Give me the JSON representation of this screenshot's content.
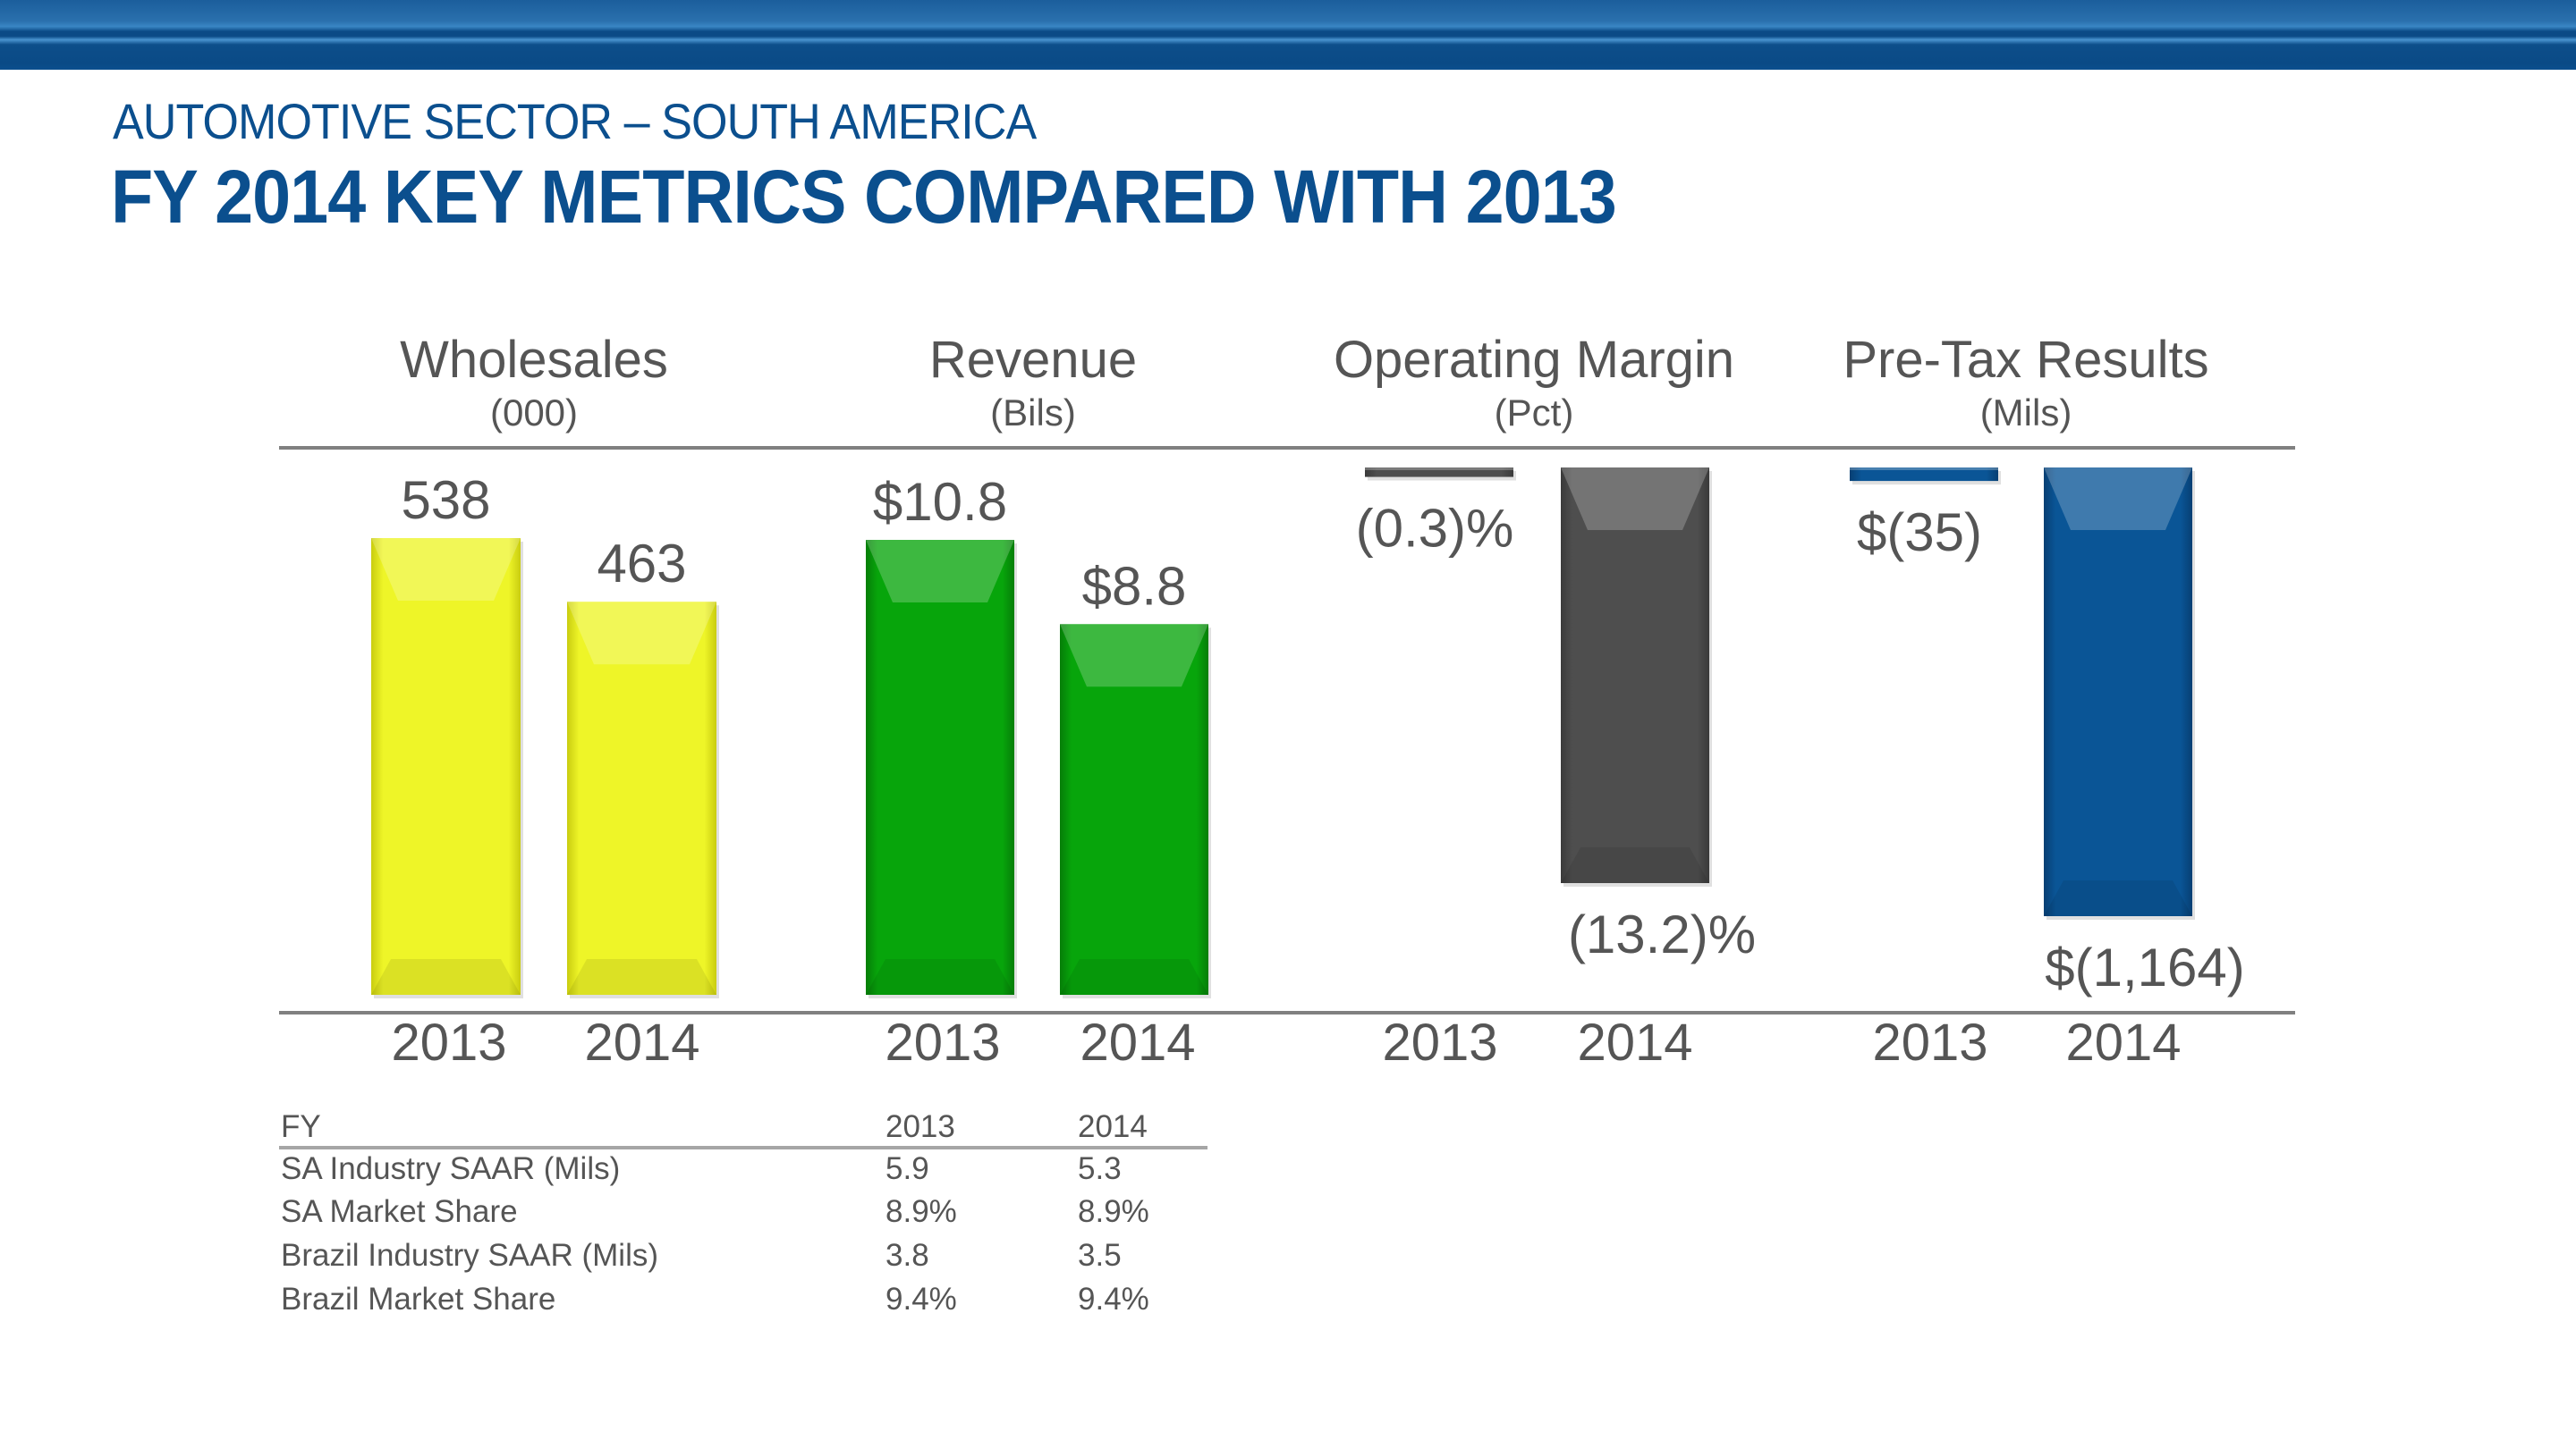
{
  "header": {
    "subtitle": "AUTOMOTIVE SECTOR – SOUTH AMERICA",
    "title": "FY 2014 KEY METRICS COMPARED WITH 2013"
  },
  "colors": {
    "title_blue": "#0b4f8e",
    "wholesales_yellow": "#f0f52a",
    "revenue_green": "#07a10a",
    "op_margin_gray": "#4b4b4b",
    "pretax_blue": "#0a5293",
    "text_gray": "#555555"
  },
  "chart_data": [
    {
      "type": "bar",
      "title": "Wholesales",
      "unit_label": "(000)",
      "categories": [
        "2013",
        "2014"
      ],
      "values": [
        538,
        463
      ],
      "data_labels": [
        "538",
        "463"
      ]
    },
    {
      "type": "bar",
      "title": "Revenue",
      "unit_label": "(Bils)",
      "categories": [
        "2013",
        "2014"
      ],
      "values": [
        10.8,
        8.8
      ],
      "data_labels": [
        "$10.8",
        "$8.8"
      ]
    },
    {
      "type": "bar",
      "title": "Operating Margin",
      "unit_label": "(Pct)",
      "categories": [
        "2013",
        "2014"
      ],
      "values": [
        -0.3,
        -13.2
      ],
      "data_labels": [
        "(0.3)%",
        "(13.2)%"
      ]
    },
    {
      "type": "bar",
      "title": "Pre-Tax Results",
      "unit_label": "(Mils)",
      "categories": [
        "2013",
        "2014"
      ],
      "values": [
        -35,
        -1164
      ],
      "data_labels": [
        "$(35)",
        "$(1,164)"
      ]
    }
  ],
  "table": {
    "headers": [
      "FY",
      "2013",
      "2014"
    ],
    "rows": [
      [
        "SA Industry SAAR (Mils)",
        "5.9",
        "5.3"
      ],
      [
        "SA Market Share",
        "8.9%",
        "8.9%"
      ],
      [
        "Brazil Industry SAAR (Mils)",
        "3.8",
        "3.5"
      ],
      [
        "Brazil Market Share",
        "9.4%",
        "9.4%"
      ]
    ]
  }
}
